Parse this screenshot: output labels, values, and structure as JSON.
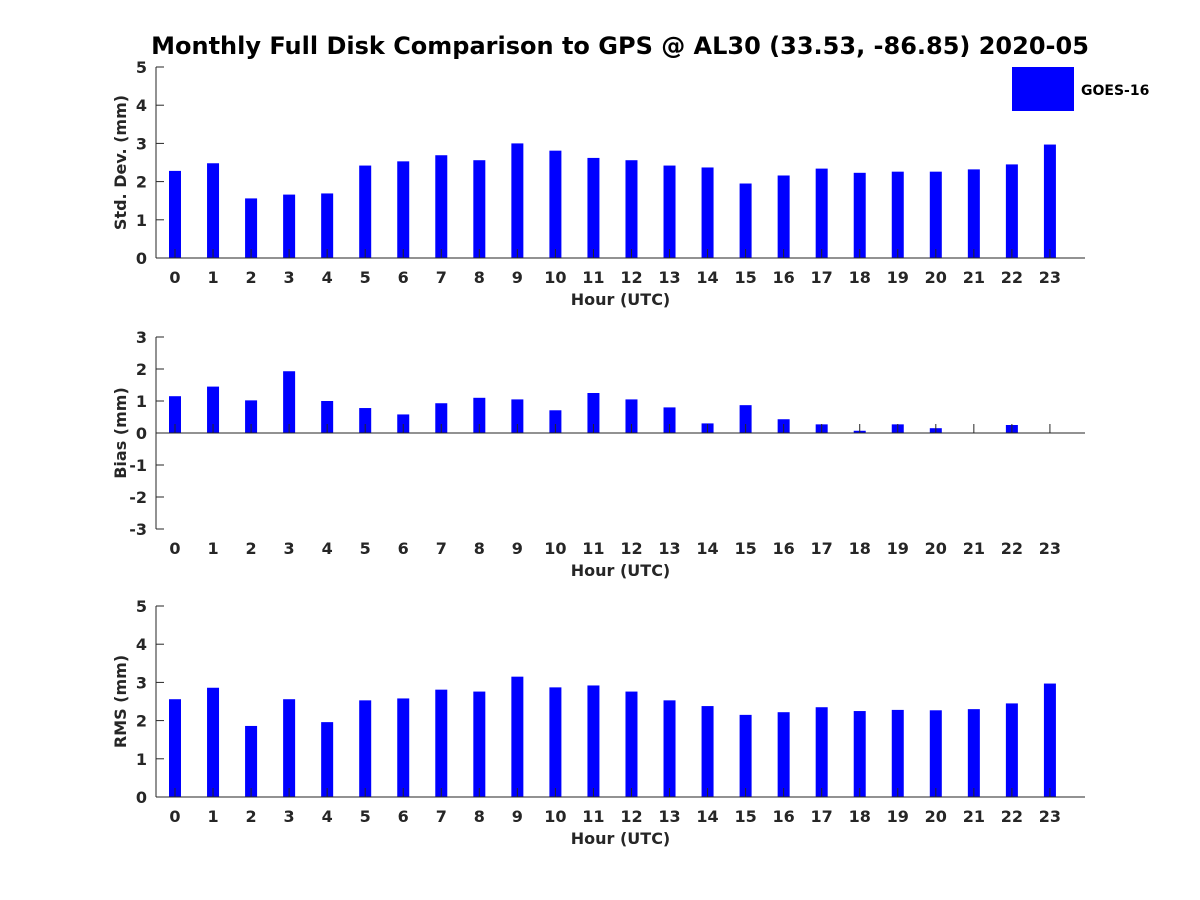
{
  "title": "Monthly Full Disk Comparison to GPS @ AL30 (33.53, -86.85) 2020-05",
  "legend": {
    "label": "GOES-16",
    "color": "#0000ff"
  },
  "bar_color": "#0000ff",
  "chart_data": [
    {
      "type": "bar",
      "categories": [
        "0",
        "1",
        "2",
        "3",
        "4",
        "5",
        "6",
        "7",
        "8",
        "9",
        "10",
        "11",
        "12",
        "13",
        "14",
        "15",
        "16",
        "17",
        "18",
        "19",
        "20",
        "21",
        "22",
        "23"
      ],
      "series": [
        {
          "name": "GOES-16",
          "values": [
            2.28,
            2.48,
            1.56,
            1.66,
            1.69,
            2.42,
            2.53,
            2.69,
            2.56,
            3.0,
            2.81,
            2.62,
            2.56,
            2.42,
            2.37,
            1.95,
            2.16,
            2.34,
            2.23,
            2.26,
            2.26,
            2.32,
            2.45,
            2.97
          ]
        }
      ],
      "xlabel": "Hour (UTC)",
      "ylabel": "Std. Dev. (mm)",
      "ylim": [
        0,
        5
      ],
      "yticks": [
        "0",
        "1",
        "2",
        "3",
        "4",
        "5"
      ],
      "legend": "top-right"
    },
    {
      "type": "bar",
      "categories": [
        "0",
        "1",
        "2",
        "3",
        "4",
        "5",
        "6",
        "7",
        "8",
        "9",
        "10",
        "11",
        "12",
        "13",
        "14",
        "15",
        "16",
        "17",
        "18",
        "19",
        "20",
        "21",
        "22",
        "23"
      ],
      "series": [
        {
          "name": "GOES-16",
          "values": [
            1.15,
            1.45,
            1.02,
            1.93,
            1.0,
            0.78,
            0.58,
            0.93,
            1.1,
            1.05,
            0.71,
            1.25,
            1.05,
            0.8,
            0.3,
            0.87,
            0.43,
            0.27,
            0.07,
            0.27,
            0.15,
            0.0,
            0.25,
            0.0
          ]
        }
      ],
      "xlabel": "Hour (UTC)",
      "ylabel": "Bias (mm)",
      "ylim": [
        -3,
        3
      ],
      "yticks": [
        "-3",
        "-2",
        "-1",
        "0",
        "1",
        "2",
        "3"
      ]
    },
    {
      "type": "bar",
      "categories": [
        "0",
        "1",
        "2",
        "3",
        "4",
        "5",
        "6",
        "7",
        "8",
        "9",
        "10",
        "11",
        "12",
        "13",
        "14",
        "15",
        "16",
        "17",
        "18",
        "19",
        "20",
        "21",
        "22",
        "23"
      ],
      "series": [
        {
          "name": "GOES-16",
          "values": [
            2.56,
            2.86,
            1.86,
            2.56,
            1.96,
            2.53,
            2.58,
            2.81,
            2.76,
            3.15,
            2.87,
            2.92,
            2.76,
            2.53,
            2.38,
            2.15,
            2.22,
            2.35,
            2.25,
            2.28,
            2.27,
            2.3,
            2.45,
            2.97
          ]
        }
      ],
      "xlabel": "Hour (UTC)",
      "ylabel": "RMS (mm)",
      "ylim": [
        0,
        5
      ],
      "yticks": [
        "0",
        "1",
        "2",
        "3",
        "4",
        "5"
      ]
    }
  ]
}
